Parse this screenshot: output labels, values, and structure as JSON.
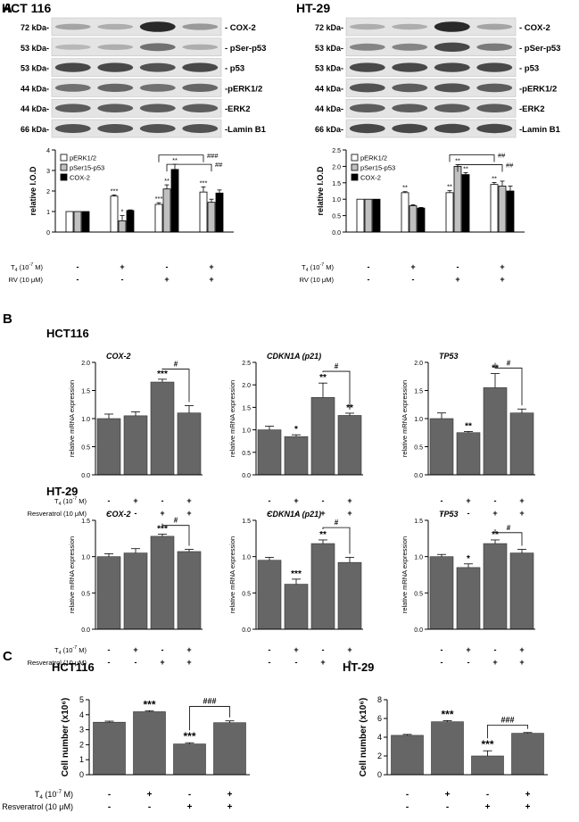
{
  "panel_labels": {
    "a": "A",
    "b": "B",
    "c": "C"
  },
  "blots": [
    {
      "title": "HCT 116",
      "rows": [
        {
          "kda": "72 kDa-",
          "protein": "- COX-2",
          "bands": [
            0.35,
            0.3,
            0.95,
            0.4
          ]
        },
        {
          "kda": "53 kDa-",
          "protein": "- pSer-p53",
          "bands": [
            0.25,
            0.3,
            0.6,
            0.3
          ]
        },
        {
          "kda": "53 kDa-",
          "protein": "- p53",
          "bands": [
            0.8,
            0.8,
            0.75,
            0.8
          ]
        },
        {
          "kda": "44 kDa-",
          "protein": "-pERK1/2",
          "bands": [
            0.6,
            0.65,
            0.6,
            0.65
          ]
        },
        {
          "kda": "44 kDa-",
          "protein": "-ERK2",
          "bands": [
            0.7,
            0.7,
            0.7,
            0.7
          ]
        },
        {
          "kda": "66 kDa-",
          "protein": "-Lamin B1",
          "bands": [
            0.75,
            0.75,
            0.75,
            0.75
          ]
        }
      ]
    },
    {
      "title": "HT-29",
      "rows": [
        {
          "kda": "72 kDa-",
          "protein": "- COX-2",
          "bands": [
            0.3,
            0.3,
            0.95,
            0.35
          ]
        },
        {
          "kda": "53 kDa-",
          "protein": "- pSer-p53",
          "bands": [
            0.5,
            0.5,
            0.8,
            0.55
          ]
        },
        {
          "kda": "53 kDa-",
          "protein": "- p53",
          "bands": [
            0.8,
            0.8,
            0.8,
            0.8
          ]
        },
        {
          "kda": "44 kDa-",
          "protein": "-pERK1/2",
          "bands": [
            0.75,
            0.7,
            0.75,
            0.7
          ]
        },
        {
          "kda": "44 kDa-",
          "protein": "-ERK2",
          "bands": [
            0.7,
            0.7,
            0.7,
            0.7
          ]
        },
        {
          "kda": "66 kDa-",
          "protein": "-Lamin B1",
          "bands": [
            0.8,
            0.8,
            0.8,
            0.8
          ]
        }
      ]
    }
  ],
  "chart_data": [
    {
      "type": "bar",
      "id": "A-HCT116",
      "panel": "A",
      "ylabel": "relative I.O.D",
      "ylim": [
        0,
        4
      ],
      "yticks": [
        "0",
        "1",
        "2",
        "3",
        "4"
      ],
      "categories": [
        "control",
        "T4",
        "RV",
        "T4+RV"
      ],
      "series": [
        {
          "name": "pERK1/2",
          "color": "#ffffff",
          "values": [
            1.0,
            1.75,
            1.35,
            1.95
          ],
          "errors": [
            0,
            0.06,
            0.08,
            0.25
          ],
          "sig": [
            "",
            "***",
            "***",
            "***"
          ]
        },
        {
          "name": "pSer15-p53",
          "color": "#c0c0c0",
          "values": [
            1.0,
            0.55,
            2.1,
            1.45
          ],
          "errors": [
            0,
            0.25,
            0.2,
            0.15
          ],
          "sig": [
            "",
            "*",
            "**",
            ""
          ]
        },
        {
          "name": "COX-2",
          "color": "#000000",
          "values": [
            1.0,
            1.05,
            3.05,
            1.9
          ],
          "errors": [
            0,
            0.03,
            0.25,
            0.15
          ],
          "sig": [
            "",
            "",
            "**",
            ""
          ]
        }
      ],
      "brackets": [
        {
          "from_group": 2,
          "to_group": 3,
          "series": 0,
          "label": "###",
          "y": 3.75
        },
        {
          "from_group": 2,
          "to_group": 3,
          "series": 1,
          "label": "##",
          "y": 3.3
        }
      ],
      "conditions": [
        {
          "label": "T4 (10-7 M)",
          "values": [
            "-",
            "+",
            "-",
            "+"
          ]
        },
        {
          "label": "RV (10 μM)",
          "values": [
            "-",
            "-",
            "+",
            "+"
          ]
        }
      ]
    },
    {
      "type": "bar",
      "id": "A-HT29",
      "panel": "A",
      "ylabel": "relative I.O.D",
      "ylim": [
        0,
        2.5
      ],
      "yticks": [
        "0.0",
        "0.5",
        "1.0",
        "1.5",
        "2.0",
        "2.5"
      ],
      "categories": [
        "control",
        "T4",
        "RV",
        "T4+RV"
      ],
      "series": [
        {
          "name": "pERK1/2",
          "color": "#ffffff",
          "values": [
            1.0,
            1.2,
            1.2,
            1.45
          ],
          "errors": [
            0,
            0.03,
            0.06,
            0.06
          ],
          "sig": [
            "",
            "**",
            "**",
            "**"
          ]
        },
        {
          "name": "pSer15-p53",
          "color": "#c0c0c0",
          "values": [
            1.0,
            0.8,
            2.0,
            1.4
          ],
          "errors": [
            0,
            0.03,
            0.05,
            0.15
          ],
          "sig": [
            "",
            "",
            "**",
            ""
          ]
        },
        {
          "name": "COX-2",
          "color": "#000000",
          "values": [
            1.0,
            0.73,
            1.75,
            1.25
          ],
          "errors": [
            0,
            0.02,
            0.06,
            0.15
          ],
          "sig": [
            "",
            "",
            "**",
            ""
          ]
        }
      ],
      "brackets": [
        {
          "from_group": 2,
          "to_group": 3,
          "series": 0,
          "label": "##",
          "y": 2.35
        },
        {
          "from_group": 2,
          "to_group": 3,
          "series": 1,
          "label": "##",
          "y": 2.05
        }
      ],
      "conditions": [
        {
          "label": "T4 (10-7 M)",
          "values": [
            "-",
            "+",
            "-",
            "+"
          ]
        },
        {
          "label": "RV (10 μM)",
          "values": [
            "-",
            "-",
            "+",
            "+"
          ]
        }
      ]
    },
    {
      "type": "bar",
      "id": "B-HCT116-COX2",
      "panel": "B",
      "group_title": "HCT116",
      "title": "COX-2",
      "ylabel": "relative mRNA expression",
      "ylim": [
        0,
        2.0
      ],
      "yticks": [
        "0.0",
        "0.5",
        "1.0",
        "1.5",
        "2.0"
      ],
      "categories": [
        "control",
        "T4",
        "Resveratrol",
        "T4+Resveratrol"
      ],
      "values": [
        1.0,
        1.05,
        1.65,
        1.1
      ],
      "errors": [
        0.08,
        0.07,
        0.05,
        0.13
      ],
      "sig": [
        "",
        "",
        "***",
        ""
      ],
      "bracket": {
        "from": 2,
        "to": 3,
        "label": "#",
        "y": 1.88
      },
      "conditions": [
        {
          "label": "T4 (10-7 M)",
          "values": [
            "-",
            "+",
            "-",
            "+"
          ]
        },
        {
          "label": "Resveratrol (10 μM)",
          "values": [
            "-",
            "-",
            "+",
            "+"
          ]
        }
      ]
    },
    {
      "type": "bar",
      "id": "B-HCT116-CDKN1A",
      "panel": "B",
      "title": "CDKN1A (p21)",
      "ylabel": "relative mRNA expression",
      "ylim": [
        0,
        2.5
      ],
      "yticks": [
        "0.0",
        "0.5",
        "1.0",
        "1.5",
        "2.0",
        "2.5"
      ],
      "categories": [
        "control",
        "T4",
        "Resveratrol",
        "T4+Resveratrol"
      ],
      "values": [
        1.0,
        0.85,
        1.72,
        1.32
      ],
      "errors": [
        0.08,
        0.04,
        0.32,
        0.05
      ],
      "sig": [
        "",
        "*",
        "**",
        "**"
      ],
      "bracket": {
        "from": 2,
        "to": 3,
        "label": "#",
        "y": 2.3
      },
      "conditions": [
        {
          "label": "",
          "values": [
            "-",
            "+",
            "-",
            "+"
          ]
        },
        {
          "label": "",
          "values": [
            "-",
            "-",
            "+",
            "+"
          ]
        }
      ]
    },
    {
      "type": "bar",
      "id": "B-HCT116-TP53",
      "panel": "B",
      "title": "TP53",
      "ylabel": "relative mRNA expression",
      "ylim": [
        0,
        2.0
      ],
      "yticks": [
        "0.0",
        "0.5",
        "1.0",
        "1.5",
        "2.0"
      ],
      "categories": [
        "control",
        "T4",
        "Resveratrol",
        "T4+Resveratrol"
      ],
      "values": [
        1.0,
        0.75,
        1.55,
        1.1
      ],
      "errors": [
        0.1,
        0.02,
        0.25,
        0.07
      ],
      "sig": [
        "",
        "**",
        "**",
        ""
      ],
      "bracket": {
        "from": 2,
        "to": 3,
        "label": "#",
        "y": 1.9
      },
      "conditions": [
        {
          "label": "",
          "values": [
            "-",
            "+",
            "-",
            "+"
          ]
        },
        {
          "label": "",
          "values": [
            "-",
            "-",
            "+",
            "+"
          ]
        }
      ]
    },
    {
      "type": "bar",
      "id": "B-HT29-COX2",
      "panel": "B",
      "group_title": "HT-29",
      "title": "COX-2",
      "ylabel": "relative mRNA expression",
      "ylim": [
        0,
        1.5
      ],
      "yticks": [
        "0.0",
        "0.5",
        "1.0",
        "1.5"
      ],
      "categories": [
        "control",
        "T4",
        "Resveratrol",
        "T4+Resveratrol"
      ],
      "values": [
        1.0,
        1.05,
        1.28,
        1.07
      ],
      "errors": [
        0.04,
        0.06,
        0.03,
        0.03
      ],
      "sig": [
        "",
        "",
        "***",
        ""
      ],
      "bracket": {
        "from": 2,
        "to": 3,
        "label": "#",
        "y": 1.43
      },
      "conditions": [
        {
          "label": "T4 (10-7 M)",
          "values": [
            "-",
            "+",
            "-",
            "+"
          ]
        },
        {
          "label": "Resveratrol (10 μM)",
          "values": [
            "-",
            "-",
            "+",
            "+"
          ]
        }
      ]
    },
    {
      "type": "bar",
      "id": "B-HT29-CDKN1A",
      "panel": "B",
      "title": "CDKN1A (p21)",
      "ylabel": "relative mRNA expression",
      "ylim": [
        0,
        1.5
      ],
      "yticks": [
        "0.0",
        "0.5",
        "1.0",
        "1.5"
      ],
      "categories": [
        "control",
        "T4",
        "Resveratrol",
        "T4+Resveratrol"
      ],
      "values": [
        0.95,
        0.62,
        1.18,
        0.92
      ],
      "errors": [
        0.04,
        0.07,
        0.05,
        0.07
      ],
      "sig": [
        "",
        "***",
        "**",
        ""
      ],
      "bracket": {
        "from": 2,
        "to": 3,
        "label": "#",
        "y": 1.4
      },
      "conditions": [
        {
          "label": "",
          "values": [
            "-",
            "+",
            "-",
            "+"
          ]
        },
        {
          "label": "",
          "values": [
            "-",
            "-",
            "+",
            "+"
          ]
        }
      ]
    },
    {
      "type": "bar",
      "id": "B-HT29-TP53",
      "panel": "B",
      "title": "TP53",
      "ylabel": "relative mRNA expression",
      "ylim": [
        0,
        1.5
      ],
      "yticks": [
        "0.0",
        "0.5",
        "1.0",
        "1.5"
      ],
      "categories": [
        "control",
        "T4",
        "Resveratrol",
        "T4+Resveratrol"
      ],
      "values": [
        1.0,
        0.85,
        1.18,
        1.05
      ],
      "errors": [
        0.03,
        0.05,
        0.05,
        0.05
      ],
      "sig": [
        "",
        "*",
        "**",
        ""
      ],
      "bracket": {
        "from": 2,
        "to": 3,
        "label": "#",
        "y": 1.33
      },
      "conditions": [
        {
          "label": "",
          "values": [
            "-",
            "+",
            "-",
            "+"
          ]
        },
        {
          "label": "",
          "values": [
            "-",
            "-",
            "+",
            "+"
          ]
        }
      ]
    },
    {
      "type": "bar",
      "id": "C-HCT116",
      "panel": "C",
      "title": "HCT116",
      "ylabel": "Cell number (x10⁶)",
      "ylim": [
        0,
        5
      ],
      "yticks": [
        "0",
        "1",
        "2",
        "3",
        "4",
        "5"
      ],
      "categories": [
        "control",
        "T4",
        "Resveratrol",
        "T4+Resveratrol"
      ],
      "values": [
        3.5,
        4.2,
        2.05,
        3.47
      ],
      "errors": [
        0.07,
        0.07,
        0.08,
        0.12
      ],
      "sig": [
        "",
        "***",
        "***",
        ""
      ],
      "bracket": {
        "from": 2,
        "to": 3,
        "label": "###",
        "y": 4.55
      },
      "conditions": [
        {
          "label": "T4 (10-7 M)",
          "values": [
            "-",
            "+",
            "-",
            "+"
          ]
        },
        {
          "label": "Resveratrol (10 μM)",
          "values": [
            "-",
            "-",
            "+",
            "+"
          ]
        }
      ]
    },
    {
      "type": "bar",
      "id": "C-HT29",
      "panel": "C",
      "title": "HT-29",
      "ylabel": "Cell number (x10⁶)",
      "ylim": [
        0,
        8
      ],
      "yticks": [
        "0",
        "2",
        "4",
        "6",
        "8"
      ],
      "categories": [
        "control",
        "T4",
        "Resveratrol",
        "T4+Resveratrol"
      ],
      "values": [
        4.2,
        5.65,
        2.0,
        4.42
      ],
      "errors": [
        0.1,
        0.12,
        0.55,
        0.08
      ],
      "sig": [
        "",
        "***",
        "***",
        ""
      ],
      "bracket": {
        "from": 2,
        "to": 3,
        "label": "###",
        "y": 5.3
      },
      "conditions": [
        {
          "label": "",
          "values": [
            "-",
            "+",
            "-",
            "+"
          ]
        },
        {
          "label": "",
          "values": [
            "-",
            "-",
            "+",
            "+"
          ]
        }
      ]
    }
  ]
}
